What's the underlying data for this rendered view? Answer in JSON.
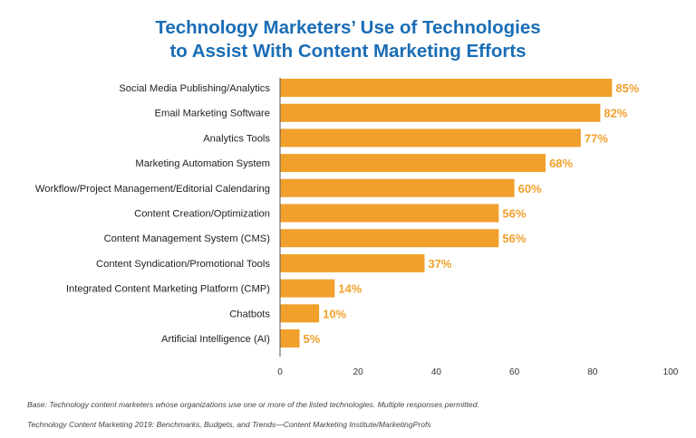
{
  "chart_data": {
    "type": "bar",
    "orientation": "horizontal",
    "title_line1": "Technology Marketers’ Use of Technologies",
    "title_line2": "to Assist With Content Marketing Efforts",
    "categories": [
      "Social Media Publishing/Analytics",
      "Email Marketing Software",
      "Analytics Tools",
      "Marketing Automation System",
      "Workflow/Project Management/Editorial Calendaring",
      "Content Creation/Optimization",
      "Content Management System (CMS)",
      "Content Syndication/Promotional Tools",
      "Integrated Content Marketing Platform (CMP)",
      "Chatbots",
      "Artificial Intelligence (AI)"
    ],
    "values": [
      85,
      82,
      77,
      68,
      60,
      56,
      56,
      37,
      14,
      10,
      5
    ],
    "value_labels": [
      "85%",
      "82%",
      "77%",
      "68%",
      "60%",
      "56%",
      "56%",
      "37%",
      "14%",
      "10%",
      "5%"
    ],
    "xlim": [
      0,
      100
    ],
    "x_ticks": [
      0,
      20,
      40,
      60,
      80,
      100
    ],
    "grid": false,
    "bar_color": "#f0a02b",
    "label_color": "#f0a02b",
    "title_color": "#1a6db5"
  },
  "footnotes": {
    "base": "Base: Technology content marketers whose organizations use one or more of the listed technologies. Multiple responses permitted.",
    "source": "Technology Content Marketing 2019: Benchmarks, Budgets, and Trends—Content Marketing Institute/MarketingProfs"
  }
}
